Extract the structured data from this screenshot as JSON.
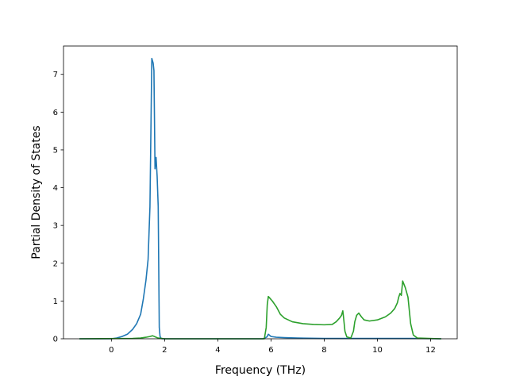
{
  "chart_data": {
    "type": "line",
    "title": "",
    "xlabel": "Frequency (THz)",
    "ylabel": "Partial Density of States",
    "xlim": [
      -1.8,
      13.0
    ],
    "ylim": [
      0,
      7.75
    ],
    "xticks": [
      0,
      2,
      4,
      6,
      8,
      10,
      12
    ],
    "yticks": [
      0,
      1,
      2,
      3,
      4,
      5,
      6,
      7
    ],
    "grid": false,
    "legend": "none",
    "series": [
      {
        "color": "#1f77b4",
        "x": [
          -1.2,
          0.0,
          0.2,
          0.4,
          0.6,
          0.8,
          0.95,
          1.1,
          1.2,
          1.3,
          1.38,
          1.45,
          1.52,
          1.57,
          1.6,
          1.64,
          1.68,
          1.72,
          1.76,
          1.8,
          1.83,
          1.86,
          1.9,
          2.0,
          5.7,
          5.85,
          5.9,
          6.0,
          6.2,
          6.5,
          7.0,
          8.0,
          9.0,
          10.0,
          11.0,
          11.3,
          12.4
        ],
        "y": [
          0,
          0,
          0.02,
          0.06,
          0.12,
          0.25,
          0.4,
          0.65,
          1.05,
          1.55,
          2.1,
          3.5,
          7.42,
          7.3,
          7.1,
          4.5,
          4.8,
          4.3,
          3.5,
          0.3,
          0.06,
          0.02,
          0,
          0,
          0,
          0.05,
          0.12,
          0.06,
          0.04,
          0.03,
          0.02,
          0.01,
          0.01,
          0.01,
          0.01,
          0.01,
          0
        ]
      },
      {
        "color": "#2ca02c",
        "x": [
          -1.2,
          0.8,
          1.1,
          1.3,
          1.45,
          1.55,
          1.65,
          1.75,
          1.9,
          2.0,
          5.75,
          5.82,
          5.86,
          5.9,
          5.95,
          6.05,
          6.2,
          6.35,
          6.5,
          6.8,
          7.2,
          7.6,
          8.0,
          8.3,
          8.45,
          8.58,
          8.65,
          8.7,
          8.73,
          8.78,
          8.85,
          9.0,
          9.1,
          9.15,
          9.22,
          9.3,
          9.4,
          9.5,
          9.7,
          10.0,
          10.3,
          10.5,
          10.65,
          10.75,
          10.8,
          10.85,
          10.9,
          10.95,
          11.05,
          11.15,
          11.25,
          11.35,
          11.5,
          12.4
        ],
        "y": [
          0,
          0.01,
          0.02,
          0.04,
          0.06,
          0.08,
          0.05,
          0.02,
          0.01,
          0,
          0,
          0.3,
          0.9,
          1.12,
          1.08,
          1.0,
          0.85,
          0.65,
          0.55,
          0.45,
          0.4,
          0.38,
          0.37,
          0.38,
          0.45,
          0.55,
          0.62,
          0.74,
          0.55,
          0.2,
          0.05,
          0.02,
          0.2,
          0.45,
          0.62,
          0.68,
          0.58,
          0.5,
          0.47,
          0.5,
          0.58,
          0.68,
          0.8,
          0.95,
          1.1,
          1.2,
          1.15,
          1.53,
          1.35,
          1.1,
          0.4,
          0.1,
          0.02,
          0
        ]
      }
    ]
  }
}
